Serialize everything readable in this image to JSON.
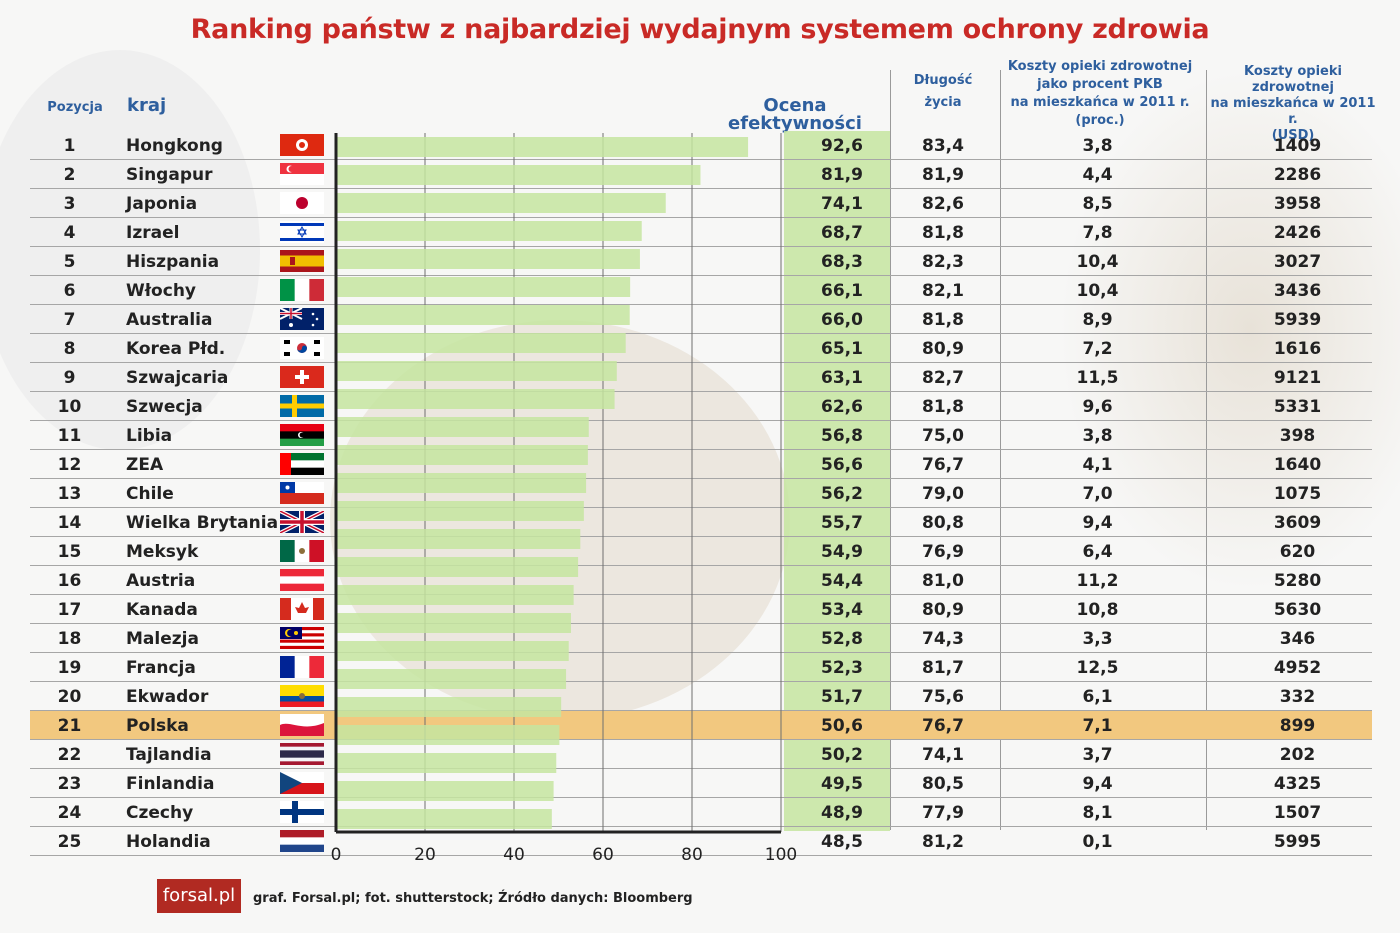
{
  "title": "Ranking państw z najbardziej wydajnym systemem ochrony zdrowia",
  "headers": {
    "pozycja": "Pozycja",
    "kraj": "kraj",
    "ocena": "Ocena efektywności",
    "dlugosc_1": "Długość",
    "dlugosc_2": "życia",
    "pct_1": "Koszty opieki zdrowotnej",
    "pct_2": "jako procent PKB",
    "pct_3": "na mieszkańca w 2011 r.",
    "pct_4": "(proc.)",
    "usd_1": "Koszty opieki",
    "usd_2": "zdrowotnej",
    "usd_3": "na mieszkańca w 2011 r.",
    "usd_4": "(USD)"
  },
  "highlight_color": "#f2c87f",
  "bar_color": "#c6e5a0",
  "title_color": "#c92a26",
  "header_color": "#2e5f9e",
  "rows": [
    {
      "pos": "1",
      "name": "Hongkong",
      "score": "92,6",
      "life": "83,4",
      "pct": "3,8",
      "usd": "1409",
      "flag": "hk-flag"
    },
    {
      "pos": "2",
      "name": "Singapur",
      "score": "81,9",
      "life": "81,9",
      "pct": "4,4",
      "usd": "2286",
      "flag": "sg-flag"
    },
    {
      "pos": "3",
      "name": "Japonia",
      "score": "74,1",
      "life": "82,6",
      "pct": "8,5",
      "usd": "3958",
      "flag": "jp-flag"
    },
    {
      "pos": "4",
      "name": "Izrael",
      "score": "68,7",
      "life": "81,8",
      "pct": "7,8",
      "usd": "2426",
      "flag": "il-flag"
    },
    {
      "pos": "5",
      "name": "Hiszpania",
      "score": "68,3",
      "life": "82,3",
      "pct": "10,4",
      "usd": "3027",
      "flag": "es-flag"
    },
    {
      "pos": "6",
      "name": "Włochy",
      "score": "66,1",
      "life": "82,1",
      "pct": "10,4",
      "usd": "3436",
      "flag": "it-flag"
    },
    {
      "pos": "7",
      "name": "Australia",
      "score": "66,0",
      "life": "81,8",
      "pct": "8,9",
      "usd": "5939",
      "flag": "au-flag"
    },
    {
      "pos": "8",
      "name": "Korea Płd.",
      "score": "65,1",
      "life": "80,9",
      "pct": "7,2",
      "usd": "1616",
      "flag": "kr-flag"
    },
    {
      "pos": "9",
      "name": "Szwajcaria",
      "score": "63,1",
      "life": "82,7",
      "pct": "11,5",
      "usd": "9121",
      "flag": "ch-flag"
    },
    {
      "pos": "10",
      "name": "Szwecja",
      "score": "62,6",
      "life": "81,8",
      "pct": "9,6",
      "usd": "5331",
      "flag": "se-flag"
    },
    {
      "pos": "11",
      "name": "Libia",
      "score": "56,8",
      "life": "75,0",
      "pct": "3,8",
      "usd": "398",
      "flag": "ly-flag"
    },
    {
      "pos": "12",
      "name": "ZEA",
      "score": "56,6",
      "life": "76,7",
      "pct": "4,1",
      "usd": "1640",
      "flag": "ae-flag"
    },
    {
      "pos": "13",
      "name": "Chile",
      "score": "56,2",
      "life": "79,0",
      "pct": "7,0",
      "usd": "1075",
      "flag": "cl-flag"
    },
    {
      "pos": "14",
      "name": "Wielka Brytania",
      "score": "55,7",
      "life": "80,8",
      "pct": "9,4",
      "usd": "3609",
      "flag": "gb-flag"
    },
    {
      "pos": "15",
      "name": "Meksyk",
      "score": "54,9",
      "life": "76,9",
      "pct": "6,4",
      "usd": "620",
      "flag": "mx-flag"
    },
    {
      "pos": "16",
      "name": "Austria",
      "score": "54,4",
      "life": "81,0",
      "pct": "11,2",
      "usd": "5280",
      "flag": "at-flag"
    },
    {
      "pos": "17",
      "name": "Kanada",
      "score": "53,4",
      "life": "80,9",
      "pct": "10,8",
      "usd": "5630",
      "flag": "ca-flag"
    },
    {
      "pos": "18",
      "name": "Malezja",
      "score": "52,8",
      "life": "74,3",
      "pct": "3,3",
      "usd": "346",
      "flag": "my-flag"
    },
    {
      "pos": "19",
      "name": "Francja",
      "score": "52,3",
      "life": "81,7",
      "pct": "12,5",
      "usd": "4952",
      "flag": "fr-flag"
    },
    {
      "pos": "20",
      "name": "Ekwador",
      "score": "51,7",
      "life": "75,6",
      "pct": "6,1",
      "usd": "332",
      "flag": "ec-flag"
    },
    {
      "pos": "21",
      "name": "Polska",
      "score": "50,6",
      "life": "76,7",
      "pct": "7,1",
      "usd": "899",
      "flag": "pl-flag",
      "highlight": true
    },
    {
      "pos": "22",
      "name": "Tajlandia",
      "score": "50,2",
      "life": "74,1",
      "pct": "3,7",
      "usd": "202",
      "flag": "th-flag"
    },
    {
      "pos": "23",
      "name": "Finlandia",
      "score": "49,5",
      "life": "80,5",
      "pct": "9,4",
      "usd": "4325",
      "flag": "cz-flag"
    },
    {
      "pos": "24",
      "name": "Czechy",
      "score": "48,9",
      "life": "77,9",
      "pct": "8,1",
      "usd": "1507",
      "flag": "fi-flag"
    },
    {
      "pos": "25",
      "name": "Holandia",
      "score": "48,5",
      "life": "81,2",
      "pct": "0,1",
      "usd": "5995",
      "flag": "nl-flag"
    }
  ],
  "chart_data": {
    "type": "bar",
    "orientation": "horizontal",
    "categories": [
      "Hongkong",
      "Singapur",
      "Japonia",
      "Izrael",
      "Hiszpania",
      "Włochy",
      "Australia",
      "Korea Płd.",
      "Szwajcaria",
      "Szwecja",
      "Libia",
      "ZEA",
      "Chile",
      "Wielka Brytania",
      "Meksyk",
      "Austria",
      "Kanada",
      "Malezja",
      "Francja",
      "Ekwador",
      "Polska",
      "Tajlandia",
      "Finlandia",
      "Czechy",
      "Holandia"
    ],
    "values": [
      92.6,
      81.9,
      74.1,
      68.7,
      68.3,
      66.1,
      66.0,
      65.1,
      63.1,
      62.6,
      56.8,
      56.6,
      56.2,
      55.7,
      54.9,
      54.4,
      53.4,
      52.8,
      52.3,
      51.7,
      50.6,
      50.2,
      49.5,
      48.9,
      48.5
    ],
    "xlim": [
      0,
      100
    ],
    "xticks": [
      "0",
      "20",
      "40",
      "60",
      "80",
      "100"
    ],
    "grid": true,
    "title": "Ranking państw z najbardziej wydajnym systemem ochrony zdrowia",
    "xlabel": "",
    "ylabel": "Ocena efektywności"
  },
  "footer": {
    "logo": "forsal.pl",
    "credits": "graf. Forsal.pl; fot. shutterstock; Źródło danych: Bloomberg"
  }
}
